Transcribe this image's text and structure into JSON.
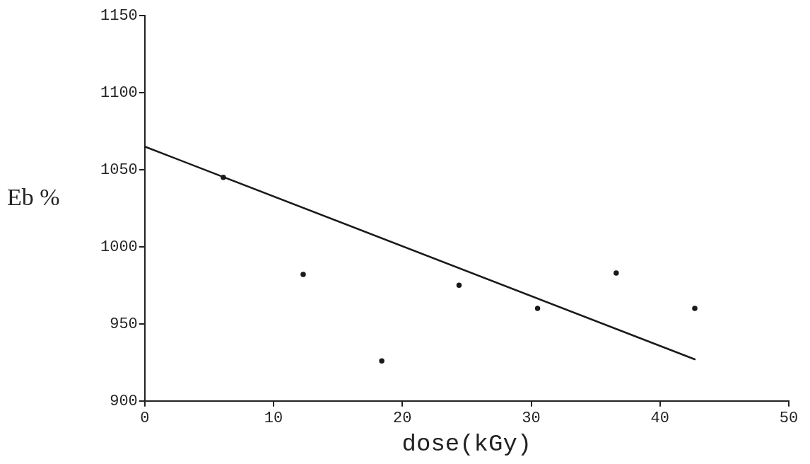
{
  "chart_data": {
    "type": "scatter",
    "xlabel": "dose(kGy)",
    "ylabel": "Eb %",
    "xlim": [
      0,
      50
    ],
    "xticks": [
      0,
      10,
      20,
      30,
      40,
      50
    ],
    "ylim": [
      900,
      1150
    ],
    "yticks": [
      900,
      950,
      1000,
      1050,
      1100,
      1150
    ],
    "grid": false,
    "legend": false,
    "marker": "circle",
    "series": [
      {
        "color": "#1a1a1a",
        "x": [
          6.1,
          12.3,
          18.4,
          24.4,
          30.5,
          36.6,
          42.7
        ],
        "values": [
          1045,
          982,
          926,
          975,
          960,
          983,
          960
        ]
      },
      {
        "type": "line",
        "color": "#1a1a1a",
        "marker": "none",
        "line_style": "solid",
        "x": [
          0,
          42.7
        ],
        "values": [
          1065,
          927
        ]
      }
    ]
  }
}
